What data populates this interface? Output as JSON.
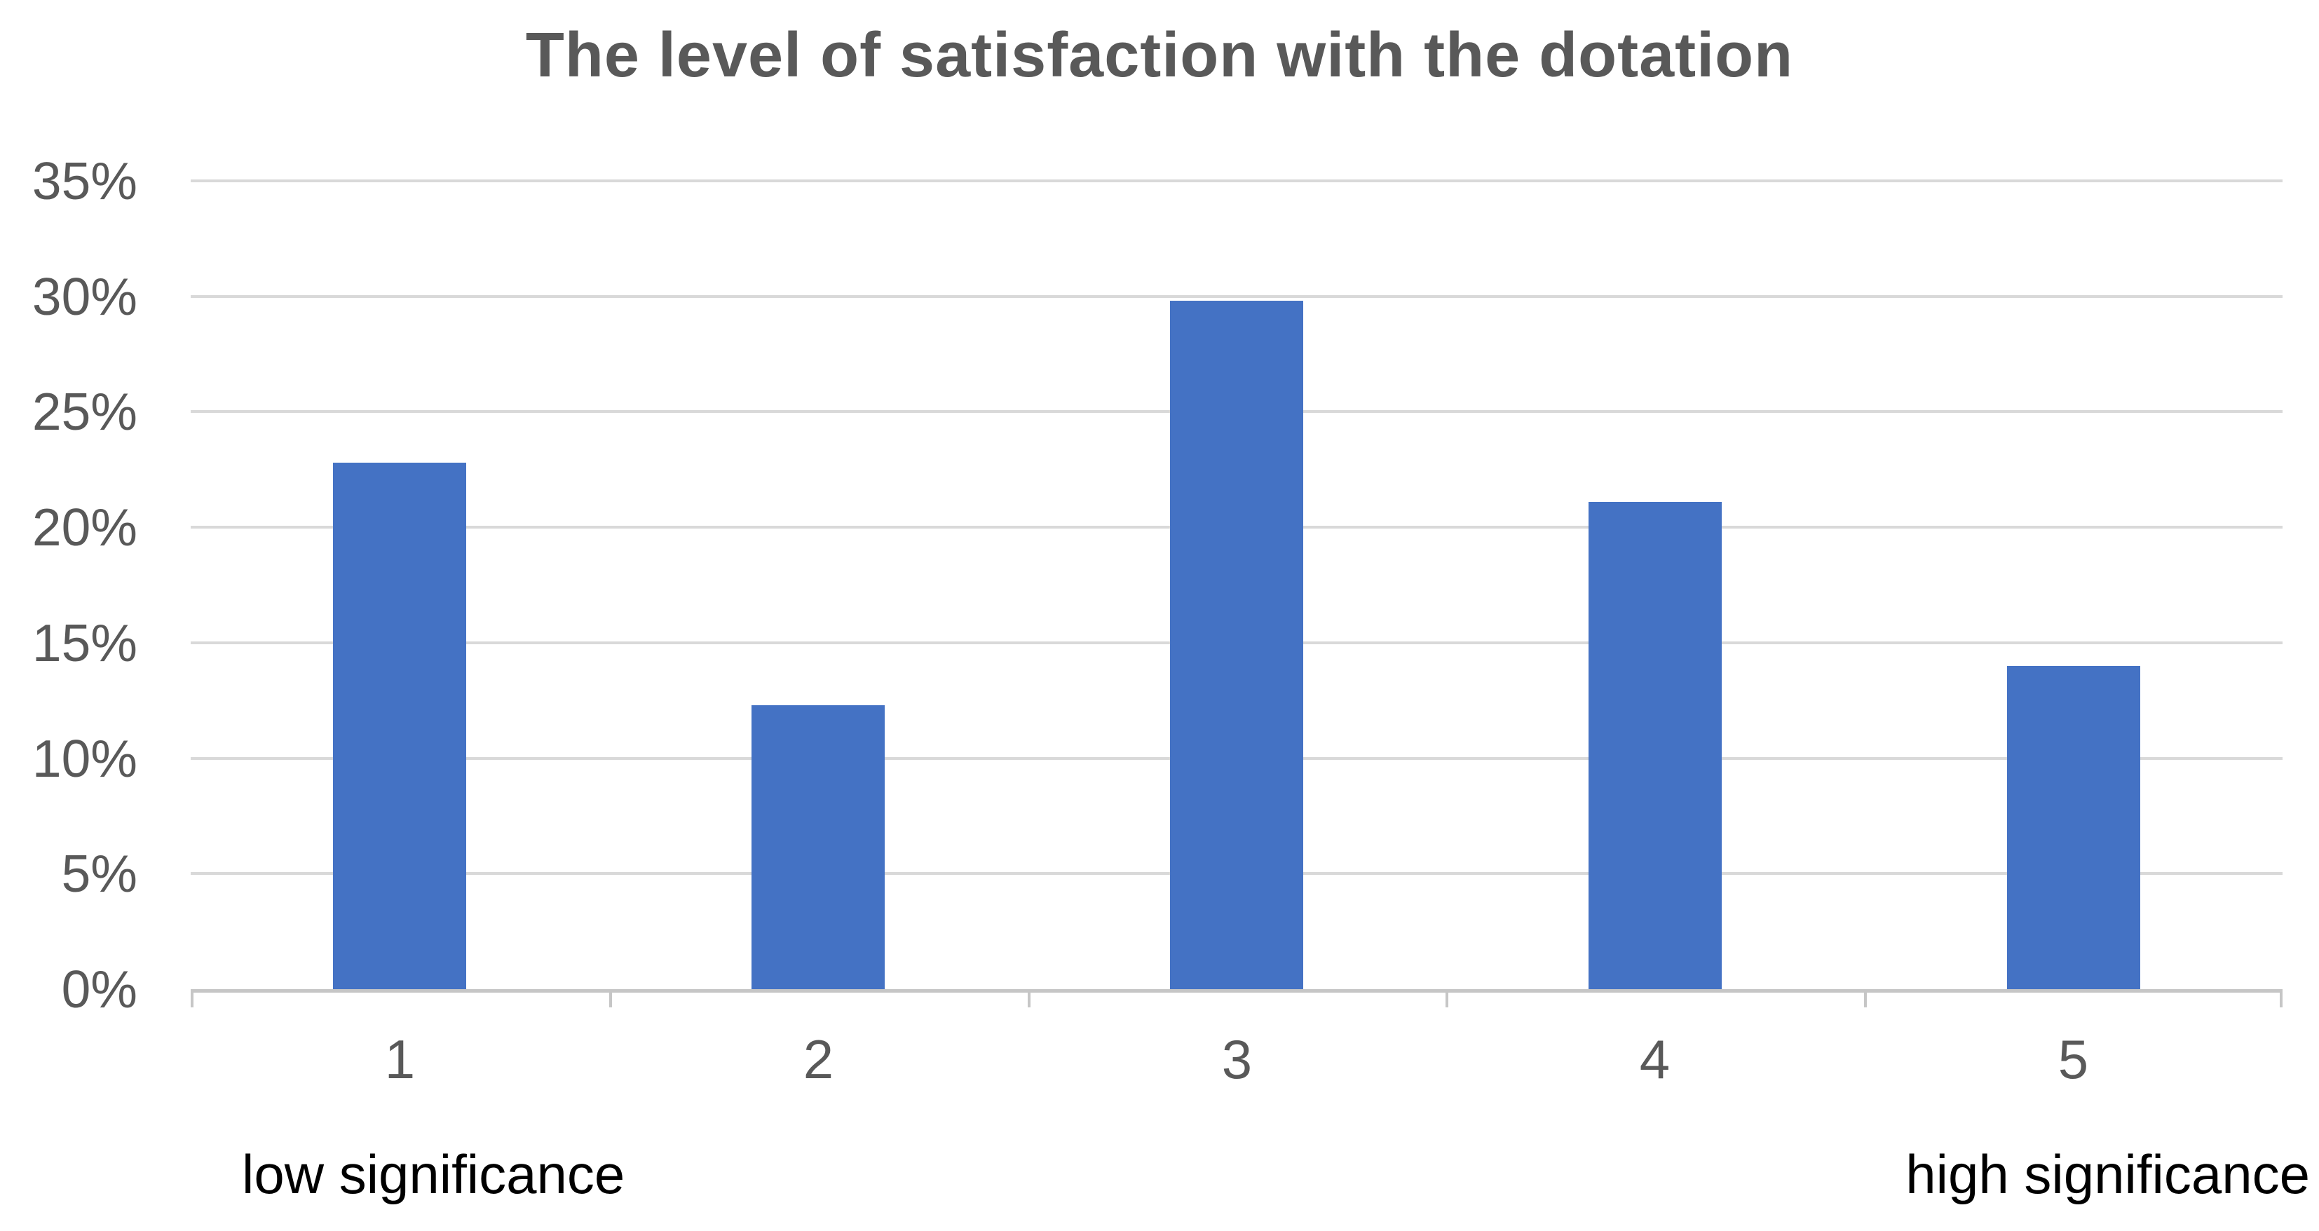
{
  "chart_data": {
    "type": "bar",
    "title": "The level of satisfaction with the dotation",
    "categories": [
      "1",
      "2",
      "3",
      "4",
      "5"
    ],
    "values": [
      22.8,
      12.3,
      29.8,
      21.1,
      14.0
    ],
    "xlabel": "",
    "ylabel": "",
    "ylim": [
      0,
      35
    ],
    "y_tick_step": 5,
    "y_tick_labels": [
      "0%",
      "5%",
      "10%",
      "15%",
      "20%",
      "25%",
      "30%",
      "35%"
    ],
    "x_axis_annotations": {
      "left": "low significance",
      "right": "high significance"
    },
    "grid": true,
    "legend": false,
    "bar_color": "#4472c4",
    "gridline_color": "#d9d9d9",
    "axis_color": "#c6c6c6",
    "tick_text_color": "#595959",
    "title_color": "#595959",
    "annotation_color": "#000000"
  }
}
